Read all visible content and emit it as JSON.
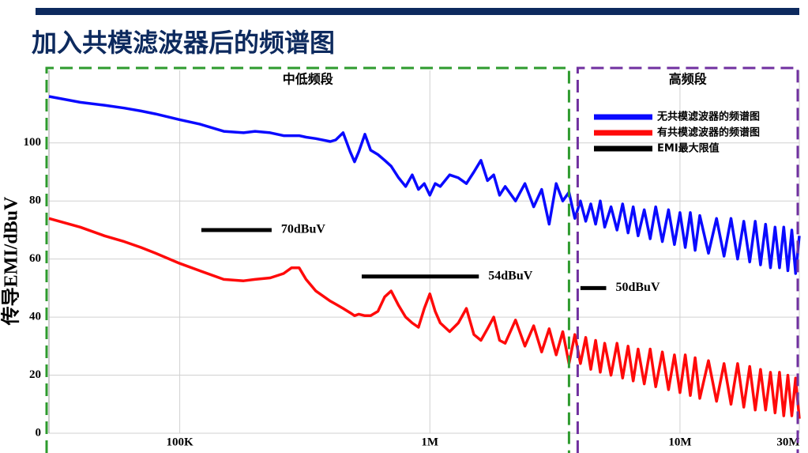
{
  "title": "加入共模滤波器后的频谱图",
  "chart_data": {
    "type": "line",
    "ylabel": "传导EMI/dBuV",
    "log_x": true,
    "grid": true,
    "xlim": [
      30000,
      30000000
    ],
    "ylim": [
      0,
      125
    ],
    "xticks": [
      {
        "value": 100000,
        "label": "100K"
      },
      {
        "value": 1000000,
        "label": "1M"
      },
      {
        "value": 10000000,
        "label": "10M"
      },
      {
        "value": 30000000,
        "label": "30M"
      }
    ],
    "yticks": [
      0,
      20,
      40,
      60,
      80,
      100
    ],
    "x": [
      30000,
      40000,
      50000,
      60000,
      70000,
      80000,
      100000,
      120000,
      150000,
      180000,
      200000,
      230000,
      260000,
      280000,
      300000,
      320000,
      350000,
      400000,
      420000,
      450000,
      480000,
      500000,
      520000,
      550000,
      580000,
      620000,
      660000,
      700000,
      750000,
      800000,
      850000,
      900000,
      950000,
      1000000,
      1050000,
      1100000,
      1200000,
      1300000,
      1400000,
      1500000,
      1600000,
      1700000,
      1800000,
      1900000,
      2000000,
      2200000,
      2400000,
      2600000,
      2800000,
      3000000,
      3200000,
      3400000,
      3600000,
      3800000,
      4000000,
      4200000,
      4400000,
      4600000,
      4800000,
      5000000,
      5300000,
      5600000,
      5900000,
      6200000,
      6500000,
      6800000,
      7200000,
      7600000,
      8000000,
      8500000,
      9000000,
      9500000,
      10000000,
      10500000,
      11000000,
      11500000,
      12000000,
      13000000,
      14000000,
      15000000,
      16000000,
      17000000,
      18000000,
      19000000,
      20000000,
      21000000,
      22000000,
      23000000,
      24000000,
      25000000,
      26000000,
      27000000,
      28000000,
      29000000,
      30000000
    ],
    "series": [
      {
        "name": "无共模滤波器的频谱图",
        "color": "#0a0aff",
        "values": [
          116,
          114,
          113,
          112,
          111,
          110,
          108,
          106.5,
          104,
          103.5,
          104,
          103.5,
          102.5,
          102.5,
          102.5,
          102,
          101.5,
          100.5,
          101,
          103.5,
          97,
          93.5,
          97,
          103,
          97.5,
          96,
          94,
          92,
          88,
          85,
          89,
          84,
          86,
          82,
          86,
          85,
          89,
          88,
          86,
          90,
          94,
          87,
          89,
          82,
          85,
          80,
          86,
          78,
          84,
          72,
          86,
          80,
          83,
          74,
          80,
          73,
          79,
          72,
          80,
          71,
          78,
          70,
          79,
          69,
          78,
          68,
          77,
          67,
          78,
          66,
          77,
          65,
          76,
          64,
          76,
          63,
          75,
          62,
          74,
          61,
          74,
          60,
          73,
          59,
          73,
          58,
          72,
          57,
          71,
          57,
          71,
          56,
          70,
          55,
          68
        ]
      },
      {
        "name": "有共模滤波器的频谱图",
        "color": "#ff0a0a",
        "values": [
          74,
          71,
          68,
          66,
          64,
          62,
          58.5,
          56,
          53,
          52.5,
          53,
          53.5,
          55,
          57,
          57,
          53,
          49,
          45.5,
          44.5,
          43,
          41.5,
          40.5,
          41,
          40.5,
          40.5,
          42,
          47,
          49,
          44,
          40,
          38,
          36.5,
          43,
          48,
          42,
          38,
          35,
          38,
          43,
          34,
          32,
          36,
          40,
          32,
          31,
          39,
          30,
          37,
          28,
          36,
          27,
          35,
          24,
          34,
          24,
          33,
          22,
          32,
          21,
          31,
          20,
          31,
          19,
          30,
          18,
          29,
          17,
          29,
          16,
          28,
          15,
          27,
          14,
          27,
          13,
          26,
          12,
          25,
          11,
          24,
          10,
          24,
          9,
          23,
          8,
          22,
          8,
          21,
          7,
          21,
          6,
          20,
          6,
          19,
          5
        ]
      }
    ],
    "limit_name": "EMI最大限值",
    "limit_color": "#000000",
    "limits": [
      {
        "value": 70,
        "label": "70dBuV",
        "x": [
          122000,
          233000
        ]
      },
      {
        "value": 54,
        "label": "54dBuV",
        "x": [
          534000,
          1570000
        ]
      },
      {
        "value": 50,
        "label": "50dBuV",
        "x": [
          4000000,
          5070000
        ]
      }
    ],
    "regions": [
      {
        "label": "中低频段",
        "color": "#2e9b2e",
        "x": [
          30000,
          3600000
        ]
      },
      {
        "label": "高频段",
        "color": "#7030a0",
        "x": [
          3600000,
          30000000
        ]
      }
    ]
  }
}
